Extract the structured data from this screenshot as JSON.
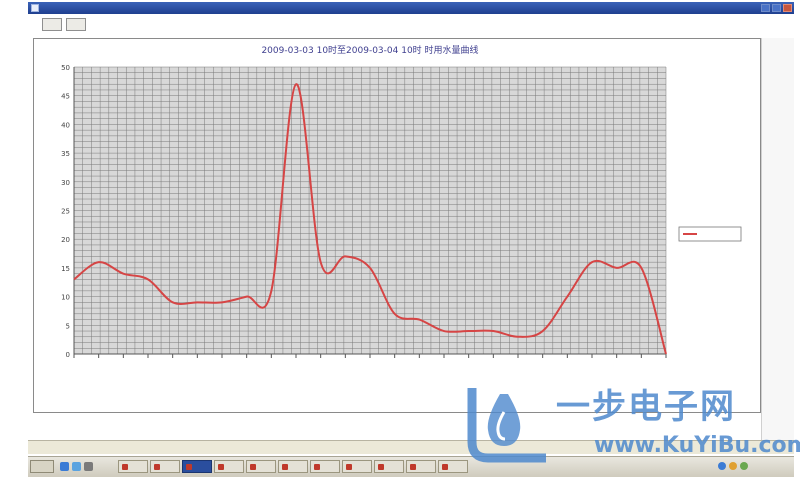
{
  "window": {
    "title": ""
  },
  "toolbar": {
    "buttons": [
      {
        "label": ""
      },
      {
        "label": ""
      }
    ]
  },
  "chart_data": {
    "type": "line",
    "title": "2009-03-03  10时至2009-03-04  10时    时用水量曲线",
    "xlabel": "",
    "ylabel": "",
    "ylim": [
      0,
      50
    ],
    "yticks": [
      0,
      5,
      10,
      15,
      20,
      25,
      30,
      35,
      40,
      45,
      50
    ],
    "grid": true,
    "legend_position": "right",
    "x": [
      "",
      "",
      "",
      "",
      "",
      "",
      "",
      "",
      "",
      "",
      "",
      "",
      "",
      "",
      "",
      "",
      "",
      "",
      "",
      "",
      "",
      "",
      "",
      "",
      ""
    ],
    "series": [
      {
        "name": "",
        "color": "#d64545",
        "values": [
          13,
          16,
          14,
          13,
          9,
          9,
          9,
          10,
          11,
          47,
          16,
          17,
          15,
          7,
          6,
          4,
          4,
          4,
          3,
          4,
          10,
          16,
          15,
          15,
          0
        ]
      }
    ]
  },
  "status": {
    "url": ""
  },
  "taskbar": {
    "start_label": "",
    "clock": ""
  },
  "watermark": {
    "text": "一步电子网",
    "url": "www.KuYiBu.com"
  }
}
